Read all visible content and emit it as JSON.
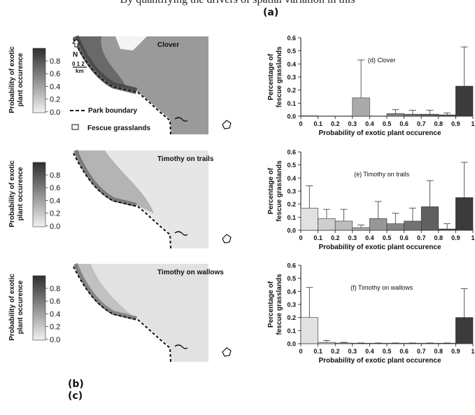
{
  "header": {
    "partial_text": "By quantifying the drivers of spatial variation in this",
    "label_a": "(a)",
    "label_b": "(b)",
    "label_c": "(c)"
  },
  "legend": {
    "title_line1": "Probability of exotic",
    "title_line2": "plant occurence",
    "ticks": [
      "0.8",
      "0.6",
      "0.4",
      "0.2",
      "0.0"
    ],
    "boundary_label": "Park boundary",
    "fescue_label": "Fescue grasslands"
  },
  "map": {
    "north_label": "N",
    "scale_label": "0 1 2",
    "scale_unit": "km"
  },
  "panels": [
    {
      "id": "clover",
      "map_title": "Clover",
      "map_base": "#9a9a9a",
      "chart_label": "(d) Clover",
      "values": [
        0.003,
        0,
        0,
        0.14,
        0,
        0.02,
        0.015,
        0.015,
        0.01,
        0.23
      ],
      "errors": [
        0,
        0,
        0,
        0.43,
        0,
        0.05,
        0.045,
        0.045,
        0.025,
        0.53
      ]
    },
    {
      "id": "timothy-trails",
      "map_title": "Timothy on trails",
      "map_base": "#e6e6e6",
      "chart_label": "(e) Timothy on trails",
      "values": [
        0.17,
        0.09,
        0.07,
        0.02,
        0.09,
        0.05,
        0.07,
        0.18,
        0.01,
        0.25
      ],
      "errors": [
        0.34,
        0.16,
        0.16,
        0.04,
        0.22,
        0.13,
        0.17,
        0.38,
        0.05,
        0.52
      ]
    },
    {
      "id": "timothy-wallows",
      "map_title": "Timothy on wallows",
      "map_base": "#e2e2e2",
      "chart_label": "(f) Timothy on wallows",
      "values": [
        0.2,
        0.01,
        0.005,
        0.003,
        0.003,
        0.003,
        0.003,
        0.003,
        0.003,
        0.2
      ],
      "errors": [
        0.43,
        0.025,
        0.01,
        0.005,
        0.005,
        0.005,
        0.005,
        0.005,
        0.005,
        0.42
      ]
    }
  ],
  "chart_data": [
    {
      "type": "bar",
      "categories": [
        "0-0.1",
        "0.1-0.2",
        "0.2-0.3",
        "0.3-0.4",
        "0.4-0.5",
        "0.5-0.6",
        "0.6-0.7",
        "0.7-0.8",
        "0.8-0.9",
        "0.9-1"
      ],
      "series": [
        {
          "values": [
            0.003,
            0,
            0,
            0.14,
            0,
            0.02,
            0.015,
            0.015,
            0.01,
            0.23
          ]
        }
      ],
      "title": "(d) Clover",
      "xlabel": "Probability of exotic plant occurence",
      "ylabel": "Percentage of fescue grasslands",
      "ylim": [
        0,
        0.6
      ],
      "xticks": [
        "0",
        "0.1",
        "0.2",
        "0.3",
        "0.4",
        "0.5",
        "0.6",
        "0.7",
        "0.8",
        "0.9",
        "1"
      ],
      "yticks": [
        "0.0",
        "0.1",
        "0.2",
        "0.3",
        "0.4",
        "0.5",
        "0.6"
      ]
    },
    {
      "type": "bar",
      "categories": [
        "0-0.1",
        "0.1-0.2",
        "0.2-0.3",
        "0.3-0.4",
        "0.4-0.5",
        "0.5-0.6",
        "0.6-0.7",
        "0.7-0.8",
        "0.8-0.9",
        "0.9-1"
      ],
      "series": [
        {
          "values": [
            0.17,
            0.09,
            0.07,
            0.02,
            0.09,
            0.05,
            0.07,
            0.18,
            0.01,
            0.25
          ]
        }
      ],
      "title": "(e) Timothy on trails",
      "xlabel": "Probability of exotic plant occurence",
      "ylabel": "Percentage of fescue grasslands",
      "ylim": [
        0,
        0.6
      ],
      "xticks": [
        "0",
        "0.1",
        "0.2",
        "0.3",
        "0.4",
        "0.5",
        "0.6",
        "0.7",
        "0.8",
        "0.9",
        "1"
      ],
      "yticks": [
        "0.0",
        "0.1",
        "0.2",
        "0.3",
        "0.4",
        "0.5",
        "0.6"
      ]
    },
    {
      "type": "bar",
      "categories": [
        "0-0.1",
        "0.1-0.2",
        "0.2-0.3",
        "0.3-0.4",
        "0.4-0.5",
        "0.5-0.6",
        "0.6-0.7",
        "0.7-0.8",
        "0.8-0.9",
        "0.9-1"
      ],
      "series": [
        {
          "values": [
            0.2,
            0.01,
            0.005,
            0.003,
            0.003,
            0.003,
            0.003,
            0.003,
            0.003,
            0.2
          ]
        }
      ],
      "title": "(f) Timothy on wallows",
      "xlabel": "Probability of exotic plant occurence",
      "ylabel": "Percentage of fescue grasslands",
      "ylim": [
        0,
        0.6
      ],
      "xticks": [
        "0",
        "0.1",
        "0.2",
        "0.3",
        "0.4",
        "0.5",
        "0.6",
        "0.7",
        "0.8",
        "0.9",
        "1"
      ],
      "yticks": [
        "0.0",
        "0.1",
        "0.2",
        "0.3",
        "0.4",
        "0.5",
        "0.6"
      ]
    }
  ]
}
